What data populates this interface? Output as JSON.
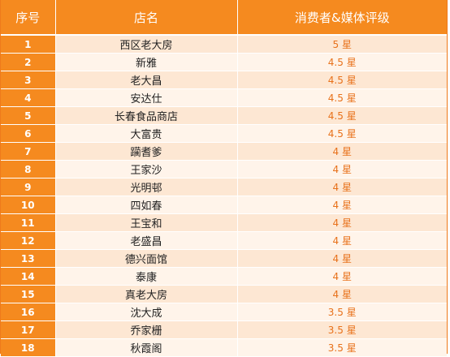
{
  "header": {
    "col_index": "序号",
    "col_name": "店名",
    "col_rating": "消费者&媒体评级"
  },
  "rows": [
    {
      "index": "1",
      "name": "西区老大房",
      "rating": "5 星"
    },
    {
      "index": "2",
      "name": "新雅",
      "rating": "4.5 星"
    },
    {
      "index": "3",
      "name": "老大昌",
      "rating": "4.5 星"
    },
    {
      "index": "4",
      "name": "安达仕",
      "rating": "4.5 星"
    },
    {
      "index": "5",
      "name": "长春食品商店",
      "rating": "4.5 星"
    },
    {
      "index": "6",
      "name": "大富贵",
      "rating": "4.5 星"
    },
    {
      "index": "7",
      "name": "躏耆爹",
      "rating": "4 星"
    },
    {
      "index": "8",
      "name": "王家沙",
      "rating": "4 星"
    },
    {
      "index": "9",
      "name": "光明邨",
      "rating": "4 星"
    },
    {
      "index": "10",
      "name": "四如春",
      "rating": "4 星"
    },
    {
      "index": "11",
      "name": "王宝和",
      "rating": "4 星"
    },
    {
      "index": "12",
      "name": "老盛昌",
      "rating": "4 星"
    },
    {
      "index": "13",
      "name": "德兴面馆",
      "rating": "4 星"
    },
    {
      "index": "14",
      "name": "泰康",
      "rating": "4 星"
    },
    {
      "index": "15",
      "name": "真老大房",
      "rating": "4 星"
    },
    {
      "index": "16",
      "name": "沈大成",
      "rating": "3.5 星"
    },
    {
      "index": "17",
      "name": "乔家栅",
      "rating": "3.5 星"
    },
    {
      "index": "18",
      "name": "秋霞阁",
      "rating": "3.5 星"
    }
  ],
  "colors": {
    "header_bg": "#f58a1f",
    "row_odd_bg": "#fde7d3",
    "row_even_bg": "#fff4ea",
    "rating_text": "#e8711a"
  }
}
